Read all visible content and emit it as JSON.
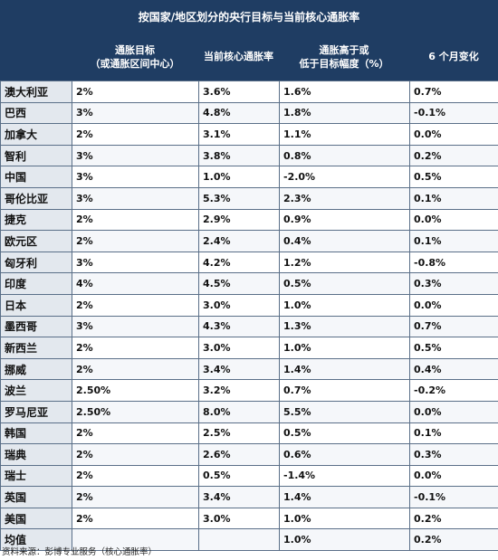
{
  "title": "按国家/地区划分的央行目标与当前核心通胀率",
  "headers": {
    "col1": "",
    "col2": "通胀目标\n（或通胀区间中心）",
    "col3": "当前核心通胀率",
    "col4": "通胀高于或\n低于目标幅度（%）",
    "col5": "6 个月变化"
  },
  "rows": [
    {
      "country": "澳大利亚",
      "target": "2%",
      "core": "3.6%",
      "gap": "1.6%",
      "change": "0.7%"
    },
    {
      "country": "巴西",
      "target": "3%",
      "core": "4.8%",
      "gap": "1.8%",
      "change": "-0.1%"
    },
    {
      "country": "加拿大",
      "target": "2%",
      "core": "3.1%",
      "gap": "1.1%",
      "change": "0.0%"
    },
    {
      "country": "智利",
      "target": "3%",
      "core": "3.8%",
      "gap": "0.8%",
      "change": "0.2%"
    },
    {
      "country": "中国",
      "target": "3%",
      "core": "1.0%",
      "gap": "-2.0%",
      "change": "0.5%"
    },
    {
      "country": "哥伦比亚",
      "target": "3%",
      "core": "5.3%",
      "gap": "2.3%",
      "change": "0.1%"
    },
    {
      "country": "捷克",
      "target": "2%",
      "core": "2.9%",
      "gap": "0.9%",
      "change": "0.0%"
    },
    {
      "country": "欧元区",
      "target": "2%",
      "core": "2.4%",
      "gap": "0.4%",
      "change": "0.1%"
    },
    {
      "country": "匈牙利",
      "target": "3%",
      "core": "4.2%",
      "gap": "1.2%",
      "change": "-0.8%"
    },
    {
      "country": "印度",
      "target": "4%",
      "core": "4.5%",
      "gap": "0.5%",
      "change": "0.3%"
    },
    {
      "country": "日本",
      "target": "2%",
      "core": "3.0%",
      "gap": "1.0%",
      "change": "0.0%"
    },
    {
      "country": "墨西哥",
      "target": "3%",
      "core": "4.3%",
      "gap": "1.3%",
      "change": "0.7%"
    },
    {
      "country": "新西兰",
      "target": "2%",
      "core": "3.0%",
      "gap": "1.0%",
      "change": "0.5%"
    },
    {
      "country": "挪威",
      "target": "2%",
      "core": "3.4%",
      "gap": "1.4%",
      "change": "0.4%"
    },
    {
      "country": "波兰",
      "target": "2.50%",
      "core": "3.2%",
      "gap": "0.7%",
      "change": "-0.2%"
    },
    {
      "country": "罗马尼亚",
      "target": "2.50%",
      "core": "8.0%",
      "gap": "5.5%",
      "change": "0.0%"
    },
    {
      "country": "韩国",
      "target": "2%",
      "core": "2.5%",
      "gap": "0.5%",
      "change": "0.1%"
    },
    {
      "country": "瑞典",
      "target": "2%",
      "core": "2.6%",
      "gap": "0.6%",
      "change": "0.3%"
    },
    {
      "country": "瑞士",
      "target": "2%",
      "core": "0.5%",
      "gap": "-1.4%",
      "change": "0.0%"
    },
    {
      "country": "英国",
      "target": "2%",
      "core": "3.4%",
      "gap": "1.4%",
      "change": "-0.1%"
    },
    {
      "country": "美国",
      "target": "2%",
      "core": "3.0%",
      "gap": "1.0%",
      "change": "0.2%"
    },
    {
      "country": "均值",
      "target": "",
      "core": "",
      "gap": "1.0%",
      "change": "0.2%"
    }
  ],
  "source": "资料来源：彭博专业服务（核心通胀率）",
  "colors": {
    "header_bg": "#1f3d63",
    "country_cell_bg": "#e3e8ee",
    "border": "#5a6f88"
  }
}
